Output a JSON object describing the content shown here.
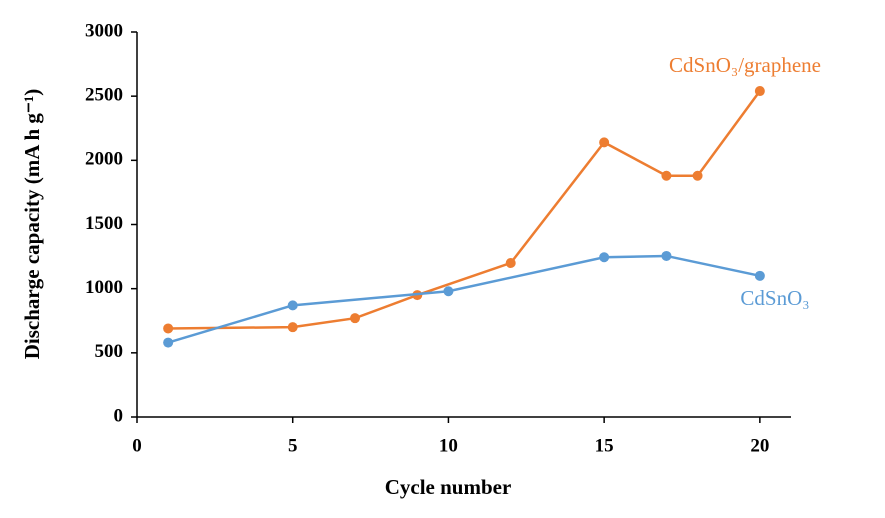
{
  "chart_data": {
    "type": "line",
    "x_label": "Cycle number",
    "y_label": "Discharge capacity (mA h g⁻¹)",
    "xlim": [
      0,
      21
    ],
    "xticks": [
      0,
      5,
      10,
      15,
      20
    ],
    "ylim": [
      0,
      3000
    ],
    "yticks": [
      0,
      500,
      1000,
      1500,
      2000,
      2500,
      3000
    ],
    "grid": false,
    "series": [
      {
        "name": "CdSnO₃/graphene",
        "color": "#ed7d31",
        "x": [
          1,
          5,
          7,
          9,
          12,
          15,
          17,
          18,
          20
        ],
        "values": [
          690,
          700,
          770,
          950,
          1200,
          2140,
          1880,
          1880,
          2540
        ]
      },
      {
        "name": "CdSnO₃",
        "color": "#5b9bd5",
        "x": [
          1,
          5,
          10,
          15,
          17,
          20
        ],
        "values": [
          580,
          870,
          980,
          1245,
          1255,
          1100
        ]
      }
    ]
  }
}
